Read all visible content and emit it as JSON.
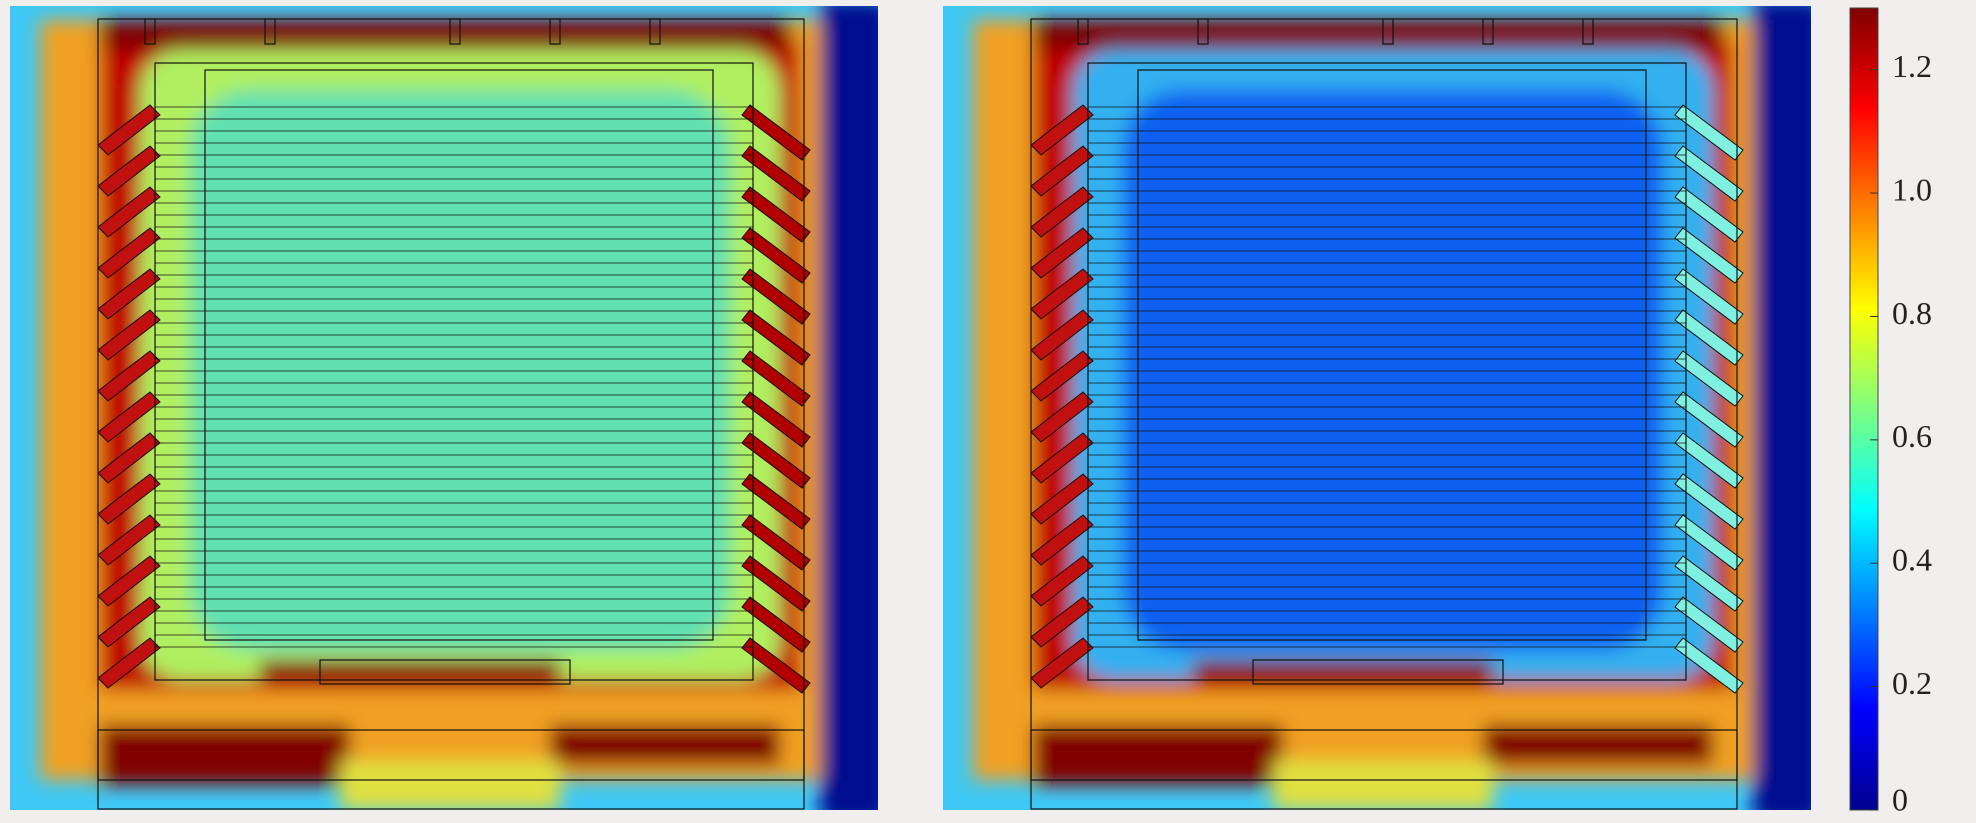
{
  "chart_data": {
    "type": "contour",
    "zlim": [
      0,
      1.3
    ],
    "zticks": [
      0,
      0.2,
      0.4,
      0.6,
      0.8,
      {
        "value": 1,
        "label": "1.0"
      },
      1.2
    ]
  }
}
